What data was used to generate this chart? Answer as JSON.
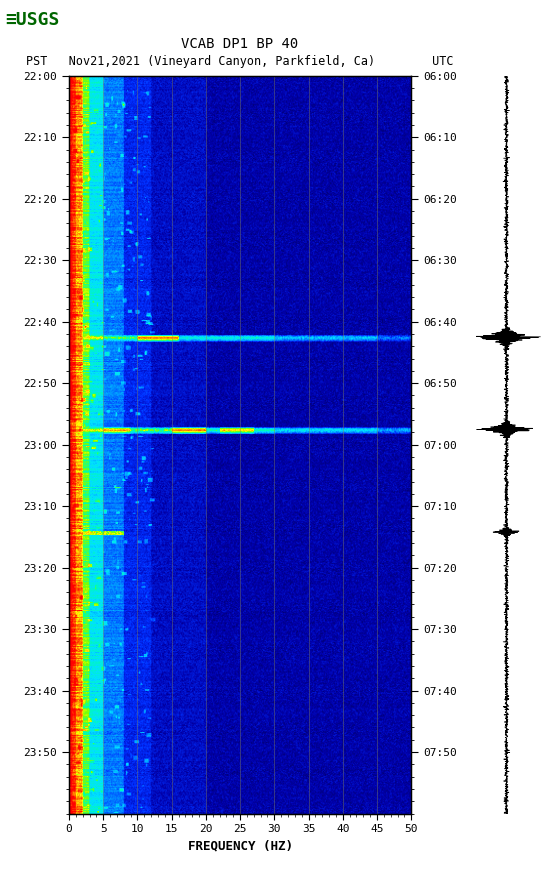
{
  "title_line1": "VCAB DP1 BP 40",
  "title_line2": "PST   Nov21,2021 (Vineyard Canyon, Parkfield, Ca)        UTC",
  "xlabel": "FREQUENCY (HZ)",
  "freq_min": 0,
  "freq_max": 50,
  "time_labels_left": [
    "22:00",
    "22:10",
    "22:20",
    "22:30",
    "22:40",
    "22:50",
    "23:00",
    "23:10",
    "23:20",
    "23:30",
    "23:40",
    "23:50"
  ],
  "time_labels_right": [
    "06:00",
    "06:10",
    "06:20",
    "06:30",
    "06:40",
    "06:50",
    "07:00",
    "07:10",
    "07:20",
    "07:30",
    "07:40",
    "07:50"
  ],
  "freq_ticks": [
    0,
    5,
    10,
    15,
    20,
    25,
    30,
    35,
    40,
    45,
    50
  ],
  "vert_grid_freqs": [
    5,
    10,
    15,
    20,
    25,
    30,
    35,
    40,
    45
  ],
  "background_color": "#ffffff",
  "n_time": 720,
  "n_freq": 500,
  "eq1_row": 255,
  "eq2_row": 345,
  "eq3_row": 445
}
